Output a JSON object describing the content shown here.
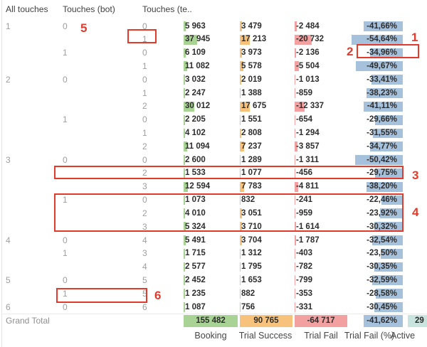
{
  "header": {
    "all_touches": "All touches",
    "touches_bot": "Touches (bot)",
    "touches_te": "Touches (te.."
  },
  "measure_labels": {
    "booking": "Booking",
    "trial_success": "Trial Success",
    "trial_fail": "Trial Fail",
    "trial_fail_pct": "Trial Fail (%)",
    "active": "Active"
  },
  "rows": [
    {
      "all": "1",
      "bot": "0",
      "te": "0",
      "booking": "5 963",
      "trial_success": "3 479",
      "trial_fail": "-2 484",
      "trial_fail_pct": "-41,66%"
    },
    {
      "all": "",
      "bot": "",
      "te": "1",
      "booking": "37 945",
      "trial_success": "17 213",
      "trial_fail": "-20 732",
      "trial_fail_pct": "-54,64%"
    },
    {
      "all": "",
      "bot": "1",
      "te": "0",
      "booking": "6 109",
      "trial_success": "3 973",
      "trial_fail": "-2 136",
      "trial_fail_pct": "-34,96%"
    },
    {
      "all": "",
      "bot": "",
      "te": "1",
      "booking": "11 082",
      "trial_success": "5 578",
      "trial_fail": "-5 504",
      "trial_fail_pct": "-49,67%"
    },
    {
      "all": "2",
      "bot": "0",
      "te": "0",
      "booking": "3 032",
      "trial_success": "2 019",
      "trial_fail": "-1 013",
      "trial_fail_pct": "-33,41%"
    },
    {
      "all": "",
      "bot": "",
      "te": "1",
      "booking": "2 247",
      "trial_success": "1 388",
      "trial_fail": "-859",
      "trial_fail_pct": "-38,23%"
    },
    {
      "all": "",
      "bot": "",
      "te": "2",
      "booking": "30 012",
      "trial_success": "17 675",
      "trial_fail": "-12 337",
      "trial_fail_pct": "-41,11%"
    },
    {
      "all": "",
      "bot": "1",
      "te": "0",
      "booking": "2 205",
      "trial_success": "1 551",
      "trial_fail": "-654",
      "trial_fail_pct": "-29,66%"
    },
    {
      "all": "",
      "bot": "",
      "te": "1",
      "booking": "4 102",
      "trial_success": "2 808",
      "trial_fail": "-1 294",
      "trial_fail_pct": "-31,55%"
    },
    {
      "all": "",
      "bot": "",
      "te": "2",
      "booking": "11 094",
      "trial_success": "7 237",
      "trial_fail": "-3 857",
      "trial_fail_pct": "-34,77%"
    },
    {
      "all": "3",
      "bot": "0",
      "te": "0",
      "booking": "2 600",
      "trial_success": "1 289",
      "trial_fail": "-1 311",
      "trial_fail_pct": "-50,42%"
    },
    {
      "all": "",
      "bot": "",
      "te": "2",
      "booking": "1 533",
      "trial_success": "1 077",
      "trial_fail": "-456",
      "trial_fail_pct": "-29,75%"
    },
    {
      "all": "",
      "bot": "",
      "te": "3",
      "booking": "12 594",
      "trial_success": "7 783",
      "trial_fail": "-4 811",
      "trial_fail_pct": "-38,20%"
    },
    {
      "all": "",
      "bot": "1",
      "te": "0",
      "booking": "1 073",
      "trial_success": "832",
      "trial_fail": "-241",
      "trial_fail_pct": "-22,46%"
    },
    {
      "all": "",
      "bot": "",
      "te": "2",
      "booking": "4 010",
      "trial_success": "3 051",
      "trial_fail": "-959",
      "trial_fail_pct": "-23,92%"
    },
    {
      "all": "",
      "bot": "",
      "te": "3",
      "booking": "5 324",
      "trial_success": "3 710",
      "trial_fail": "-1 614",
      "trial_fail_pct": "-30,32%"
    },
    {
      "all": "4",
      "bot": "0",
      "te": "4",
      "booking": "5 491",
      "trial_success": "3 704",
      "trial_fail": "-1 787",
      "trial_fail_pct": "-32,54%"
    },
    {
      "all": "",
      "bot": "1",
      "te": "3",
      "booking": "1 715",
      "trial_success": "1 312",
      "trial_fail": "-403",
      "trial_fail_pct": "-23,50%"
    },
    {
      "all": "",
      "bot": "",
      "te": "4",
      "booking": "2 577",
      "trial_success": "1 795",
      "trial_fail": "-782",
      "trial_fail_pct": "-30,35%"
    },
    {
      "all": "5",
      "bot": "0",
      "te": "5",
      "booking": "2 452",
      "trial_success": "1 653",
      "trial_fail": "-799",
      "trial_fail_pct": "-32,59%"
    },
    {
      "all": "",
      "bot": "1",
      "te": "5",
      "booking": "1 235",
      "trial_success": "882",
      "trial_fail": "-353",
      "trial_fail_pct": "-28,58%"
    },
    {
      "all": "6",
      "bot": "0",
      "te": "6",
      "booking": "1 087",
      "trial_success": "756",
      "trial_fail": "-331",
      "trial_fail_pct": "-30,45%"
    }
  ],
  "grand_total": {
    "label": "Grand Total",
    "booking": "155 482",
    "trial_success": "90 765",
    "trial_fail": "-64 717",
    "trial_fail_pct": "-41,62%",
    "active": "29"
  },
  "annotations": {
    "a1": "1",
    "a2": "2",
    "a3": "3",
    "a4": "4",
    "a5": "5",
    "a6": "6"
  },
  "colors": {
    "booking_bar": "#a9d395",
    "success_bar": "#f7c27b",
    "fail_bar": "#f2a1a0",
    "pct_bar": "#a6c1dc",
    "active_cell": "#c9e4de",
    "annotation_red": "#e23a2d"
  }
}
